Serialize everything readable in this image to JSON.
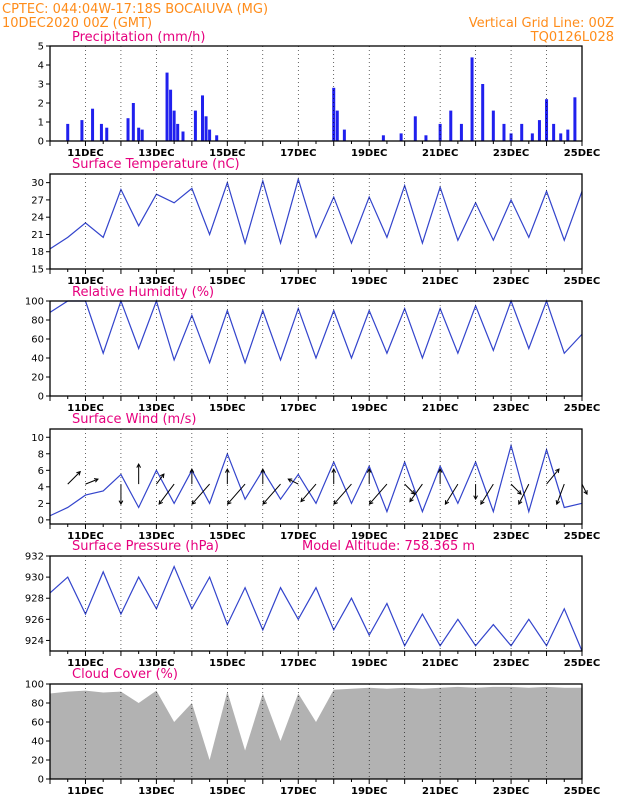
{
  "header": {
    "line1": "CPTEC:   044:04W-17:18S   BOCAIUVA (MG)",
    "line2": "10DEC2020 00Z (GMT)",
    "right1": "Vertical Grid Line: 00Z",
    "right2": "TQ0126L028"
  },
  "x_tick_labels": [
    "11DEC",
    "13DEC",
    "15DEC",
    "17DEC",
    "19DEC",
    "21DEC",
    "23DEC",
    "25DEC"
  ],
  "colors": {
    "line": "#3344cc",
    "bars": "#2020ee",
    "cloud": "#b2b2b2",
    "title": "#e6007e",
    "header": "#ff8c1a"
  },
  "chart_data": [
    {
      "type": "bar",
      "title": "Precipitation (mm/h)",
      "xlim": [
        "10DEC2020 00Z",
        "25DEC2020 00Z"
      ],
      "ylim": [
        0,
        5
      ],
      "yticks": [
        "0",
        "1",
        "2",
        "3",
        "4",
        "5"
      ],
      "x_days": [
        0.5,
        0.9,
        1.2,
        1.45,
        1.6,
        2.2,
        2.35,
        2.5,
        2.6,
        3.3,
        3.4,
        3.5,
        3.6,
        3.75,
        4.1,
        4.3,
        4.4,
        4.5,
        4.7,
        8.0,
        8.1,
        8.3,
        9.4,
        9.9,
        10.3,
        10.6,
        11.0,
        11.3,
        11.6,
        11.9,
        12.2,
        12.5,
        12.8,
        13.0,
        13.3,
        13.6,
        13.8,
        14.0,
        14.2,
        14.4,
        14.6,
        14.8
      ],
      "values": [
        0.9,
        1.1,
        1.7,
        0.9,
        0.7,
        1.2,
        2.0,
        0.7,
        0.6,
        3.6,
        2.7,
        1.6,
        0.9,
        0.5,
        1.6,
        2.4,
        1.3,
        0.6,
        0.3,
        2.8,
        1.6,
        0.6,
        0.3,
        0.4,
        1.3,
        0.3,
        0.9,
        1.6,
        0.9,
        4.4,
        3.0,
        1.6,
        0.9,
        0.4,
        0.9,
        0.4,
        1.1,
        2.2,
        0.9,
        0.4,
        0.6,
        2.3
      ]
    },
    {
      "type": "line",
      "title": "Surface Temperature (nC)",
      "xlim": [
        "10DEC2020 00Z",
        "25DEC2020 00Z"
      ],
      "ylim": [
        15,
        31.5
      ],
      "yticks": [
        "15",
        "18",
        "21",
        "24",
        "27",
        "30"
      ],
      "x_days": [
        0,
        0.5,
        1.0,
        1.5,
        2.0,
        2.5,
        3.0,
        3.5,
        4.0,
        4.5,
        5.0,
        5.5,
        6.0,
        6.5,
        7.0,
        7.5,
        8.0,
        8.5,
        9.0,
        9.5,
        10.0,
        10.5,
        11.0,
        11.5,
        12.0,
        12.5,
        13.0,
        13.5,
        14.0,
        14.5,
        15.0
      ],
      "values": [
        18.5,
        20.5,
        23.0,
        20.5,
        28.8,
        22.5,
        28.0,
        26.5,
        29.0,
        21.0,
        30.0,
        19.5,
        30.3,
        19.5,
        30.6,
        20.5,
        27.5,
        19.5,
        27.5,
        20.5,
        29.5,
        19.5,
        29.2,
        20.0,
        26.5,
        20.0,
        27.0,
        20.5,
        28.5,
        20.0,
        28.5
      ]
    },
    {
      "type": "line",
      "title": "Relative Humidity (%)",
      "xlim": [
        "10DEC2020 00Z",
        "25DEC2020 00Z"
      ],
      "ylim": [
        0,
        100
      ],
      "yticks": [
        "0",
        "20",
        "40",
        "60",
        "80",
        "100"
      ],
      "x_days": [
        0,
        0.5,
        1.0,
        1.5,
        2.0,
        2.5,
        3.0,
        3.5,
        4.0,
        4.5,
        5.0,
        5.5,
        6.0,
        6.5,
        7.0,
        7.5,
        8.0,
        8.5,
        9.0,
        9.5,
        10.0,
        10.5,
        11.0,
        11.5,
        12.0,
        12.5,
        13.0,
        13.5,
        14.0,
        14.5,
        15.0
      ],
      "values": [
        88,
        100,
        100,
        45,
        100,
        50,
        100,
        38,
        85,
        35,
        90,
        35,
        90,
        38,
        92,
        40,
        90,
        40,
        90,
        45,
        92,
        40,
        92,
        45,
        95,
        48,
        100,
        50,
        100,
        45,
        65
      ]
    },
    {
      "type": "line",
      "title": "Surface Wind (m/s)",
      "xlim": [
        "10DEC2020 00Z",
        "25DEC2020 00Z"
      ],
      "ylim": [
        -0.5,
        11
      ],
      "yticks": [
        "0",
        "2",
        "4",
        "6",
        "8",
        "10"
      ],
      "x_days": [
        0,
        0.5,
        1.0,
        1.5,
        2.0,
        2.5,
        3.0,
        3.5,
        4.0,
        4.5,
        5.0,
        5.5,
        6.0,
        6.5,
        7.0,
        7.5,
        8.0,
        8.5,
        9.0,
        9.5,
        10.0,
        10.5,
        11.0,
        11.5,
        12.0,
        12.5,
        13.0,
        13.5,
        14.0,
        14.5,
        15.0
      ],
      "values": [
        0.5,
        1.5,
        3.0,
        3.5,
        5.5,
        1.5,
        6.0,
        2.0,
        6.0,
        2.0,
        8.0,
        2.5,
        6.0,
        2.5,
        5.5,
        2.0,
        7.0,
        2.0,
        6.5,
        1.0,
        7.0,
        1.0,
        6.5,
        2.0,
        7.0,
        1.0,
        9.0,
        1.0,
        8.5,
        1.5,
        2.0
      ],
      "wind_arrows": {
        "x_days": [
          0.5,
          1.0,
          2.0,
          2.5,
          3.0,
          3.5,
          4.0,
          4.5,
          5.0,
          5.5,
          6.0,
          6.5,
          7.0,
          7.5,
          8.0,
          8.5,
          9.0,
          9.5,
          10.0,
          10.5,
          11.0,
          11.5,
          12.0,
          12.5,
          13.0,
          13.5,
          14.0,
          14.5,
          15.0
        ],
        "u": [
          2.5,
          2.5,
          0.0,
          0.0,
          1.5,
          -3.0,
          0.0,
          -3.5,
          0.0,
          -3.5,
          0.0,
          -3.5,
          -2.0,
          -3.0,
          0.0,
          -3.5,
          0.0,
          -3.5,
          2.0,
          -2.5,
          0.0,
          -2.5,
          0.0,
          -2.5,
          2.0,
          -2.0,
          2.5,
          -1.5,
          1.0
        ],
        "v": [
          2.5,
          1.0,
          -4.0,
          4.0,
          2.0,
          -4.0,
          3.0,
          -4.0,
          3.0,
          -4.0,
          3.0,
          -4.0,
          1.0,
          -3.5,
          3.0,
          -4.0,
          3.0,
          -4.0,
          -2.0,
          -3.5,
          3.0,
          -4.0,
          -3.0,
          -4.0,
          -2.0,
          -4.0,
          3.0,
          -4.0,
          -2.0
        ]
      }
    },
    {
      "type": "line",
      "title": "Surface Pressure (hPa)",
      "annotation": "Model Altitude: 758.365 m",
      "xlim": [
        "10DEC2020 00Z",
        "25DEC2020 00Z"
      ],
      "ylim": [
        923,
        932
      ],
      "yticks": [
        "924",
        "926",
        "928",
        "930",
        "932"
      ],
      "x_days": [
        0,
        0.5,
        1.0,
        1.5,
        2.0,
        2.5,
        3.0,
        3.5,
        4.0,
        4.5,
        5.0,
        5.5,
        6.0,
        6.5,
        7.0,
        7.5,
        8.0,
        8.5,
        9.0,
        9.5,
        10.0,
        10.5,
        11.0,
        11.5,
        12.0,
        12.5,
        13.0,
        13.5,
        14.0,
        14.5,
        15.0
      ],
      "values": [
        928.5,
        930.0,
        926.5,
        930.5,
        926.5,
        930.0,
        927.0,
        931.0,
        927.0,
        930.0,
        925.5,
        929.0,
        925.0,
        929.0,
        926.0,
        929.0,
        925.0,
        928.0,
        924.5,
        927.5,
        923.5,
        926.5,
        923.5,
        926.0,
        923.5,
        925.5,
        923.5,
        926.0,
        923.5,
        927.0,
        923.0
      ]
    },
    {
      "type": "area",
      "title": "Cloud Cover (%)",
      "xlim": [
        "10DEC2020 00Z",
        "25DEC2020 00Z"
      ],
      "ylim": [
        0,
        100
      ],
      "yticks": [
        "0",
        "20",
        "40",
        "60",
        "80",
        "100"
      ],
      "x_days": [
        0,
        0.5,
        1.0,
        1.5,
        2.0,
        2.5,
        3.0,
        3.5,
        4.0,
        4.5,
        5.0,
        5.5,
        6.0,
        6.5,
        7.0,
        7.5,
        8.0,
        8.5,
        9.0,
        9.5,
        10.0,
        10.5,
        11.0,
        11.5,
        12.0,
        12.5,
        13.0,
        13.5,
        14.0,
        14.5,
        15.0
      ],
      "values": [
        90,
        92,
        93,
        91,
        92,
        80,
        93,
        60,
        80,
        20,
        92,
        30,
        90,
        40,
        90,
        60,
        94,
        95,
        96,
        95,
        96,
        95,
        96,
        97,
        96,
        97,
        97,
        96,
        97,
        96,
        96
      ]
    }
  ]
}
